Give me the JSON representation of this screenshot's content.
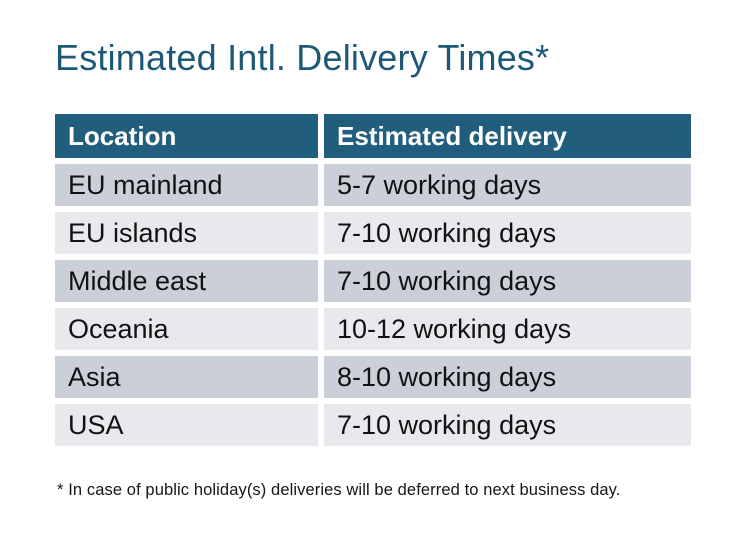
{
  "title": "Estimated Intl. Delivery Times*",
  "table": {
    "columns": [
      "Location",
      "Estimated delivery"
    ],
    "rows": [
      {
        "location": "EU mainland",
        "delivery": "5-7 working days"
      },
      {
        "location": "EU islands",
        "delivery": "7-10 working days"
      },
      {
        "location": "Middle east",
        "delivery": "7-10 working days"
      },
      {
        "location": "Oceania",
        "delivery": "10-12 working days"
      },
      {
        "location": "Asia",
        "delivery": "8-10 working days"
      },
      {
        "location": "USA",
        "delivery": "7-10 working days"
      }
    ]
  },
  "footnote": "* In case of public holiday(s) deliveries will be deferred to next business day.",
  "colors": {
    "title_text": "#1d5977",
    "header_bg": "#215e7e",
    "header_text": "#ffffff",
    "row_dark_bg": "#cbcfd7",
    "row_light_bg": "#e7e9ec",
    "body_text": "#121212"
  },
  "chart_data": {
    "type": "table",
    "title": "Estimated Intl. Delivery Times*",
    "columns": [
      "Location",
      "Estimated delivery"
    ],
    "rows": [
      [
        "EU mainland",
        "5-7 working days"
      ],
      [
        "EU islands",
        "7-10 working days"
      ],
      [
        "Middle east",
        "7-10 working days"
      ],
      [
        "Oceania",
        "10-12 working days"
      ],
      [
        "Asia",
        "8-10 working days"
      ],
      [
        "USA",
        "7-10 working days"
      ]
    ],
    "footnote": "* In case of public holiday(s) deliveries will be deferred to next business day."
  }
}
